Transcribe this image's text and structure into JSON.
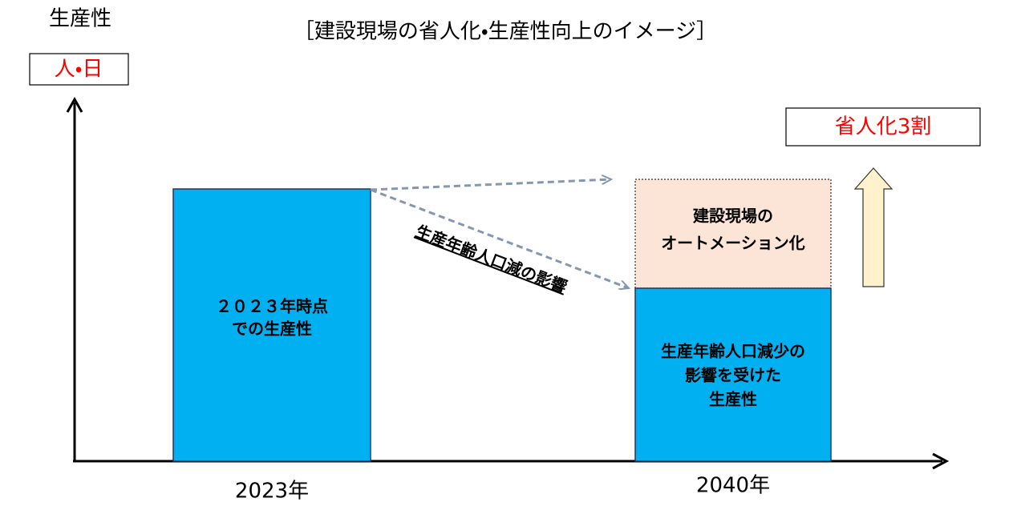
{
  "header": {
    "title": "［建設現場の省人化・生産性向上のイメージ］"
  },
  "axis": {
    "y_label": "生産性",
    "y_unit": "人・日"
  },
  "bars": [
    {
      "lines": [
        "２０２３年時点",
        "での生産性"
      ],
      "x_label": "2023年"
    },
    {
      "lines": [
        "生産年齢人口減少の",
        "影響を受けた",
        "生産性"
      ],
      "x_label": "2040年"
    }
  ],
  "automation": {
    "lines": [
      "建設現場の",
      "オートメーション化"
    ]
  },
  "arrow_label": "生産年齢人口減の影響",
  "reduction_label": "省人化3割"
}
